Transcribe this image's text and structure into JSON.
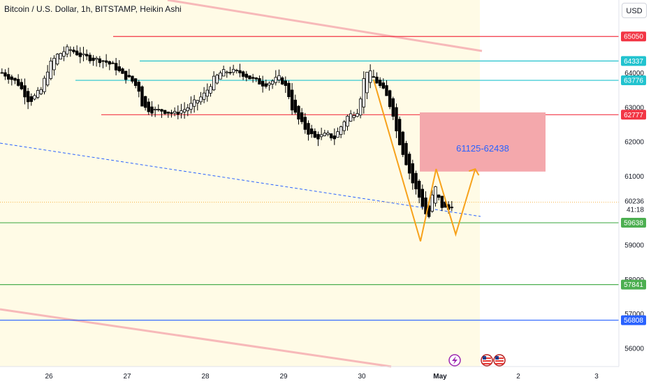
{
  "header": {
    "title": "Bitcoin / U.S. Dollar, 1h, BITSTAMP, Heikin Ashi",
    "currency": "USD"
  },
  "price_axis": {
    "ticks": [
      "64000",
      "63000",
      "62000",
      "61000",
      "59000",
      "58000",
      "57000",
      "56000"
    ],
    "current_price": "60236",
    "countdown": "41:18"
  },
  "time_axis": {
    "labels": [
      "26",
      "27",
      "28",
      "29",
      "30",
      "May",
      "2",
      "3"
    ]
  },
  "levels": [
    {
      "price": 65050,
      "label": "65050",
      "color": "#f23645"
    },
    {
      "price": 64337,
      "label": "64337",
      "color": "#22c3cf"
    },
    {
      "price": 63776,
      "label": "63776",
      "color": "#22c3cf"
    },
    {
      "price": 62777,
      "label": "62777",
      "color": "#f23645"
    },
    {
      "price": 59638,
      "label": "59638",
      "color": "#4caf50"
    },
    {
      "price": 57841,
      "label": "57841",
      "color": "#4caf50"
    },
    {
      "price": 56808,
      "label": "56808",
      "color": "#2962ff"
    }
  ],
  "target_zone": {
    "label": "61125-62438",
    "low": 61125,
    "high": 62438,
    "color": "#f4a8ac"
  },
  "icons": {
    "lightning": "lightning-icon",
    "flag": "us-flag-icon"
  },
  "colors": {
    "background_zone": "#fffbe6",
    "channel": "#f7b9b9",
    "dashed_trend": "#2962ff",
    "pattern": "#f7a21b"
  },
  "chart_data": {
    "type": "candlestick",
    "title": "Bitcoin / U.S. Dollar, 1h, BITSTAMP, Heikin Ashi",
    "ylim": [
      55500,
      66200
    ],
    "x_range_days": [
      25.4,
      32.6
    ],
    "close_path": [
      [
        25.4,
        64000
      ],
      [
        25.6,
        63700
      ],
      [
        25.75,
        63150
      ],
      [
        25.9,
        63500
      ],
      [
        26.0,
        64200
      ],
      [
        26.1,
        64500
      ],
      [
        26.25,
        64700
      ],
      [
        26.4,
        64500
      ],
      [
        26.55,
        64400
      ],
      [
        26.7,
        64350
      ],
      [
        26.85,
        64150
      ],
      [
        26.95,
        63900
      ],
      [
        27.05,
        63800
      ],
      [
        27.15,
        63500
      ],
      [
        27.2,
        63000
      ],
      [
        27.3,
        62900
      ],
      [
        27.45,
        62900
      ],
      [
        27.6,
        62800
      ],
      [
        27.75,
        62950
      ],
      [
        27.9,
        63200
      ],
      [
        28.0,
        63400
      ],
      [
        28.1,
        63800
      ],
      [
        28.2,
        64000
      ],
      [
        28.3,
        64050
      ],
      [
        28.45,
        64000
      ],
      [
        28.6,
        63800
      ],
      [
        28.75,
        63650
      ],
      [
        28.85,
        63750
      ],
      [
        28.95,
        63850
      ],
      [
        29.05,
        63500
      ],
      [
        29.1,
        63000
      ],
      [
        29.2,
        62600
      ],
      [
        29.3,
        62300
      ],
      [
        29.4,
        62100
      ],
      [
        29.55,
        62200
      ],
      [
        29.65,
        62100
      ],
      [
        29.8,
        62700
      ],
      [
        29.95,
        62900
      ],
      [
        30.0,
        63500
      ],
      [
        30.05,
        64100
      ],
      [
        30.1,
        64000
      ],
      [
        30.2,
        63700
      ],
      [
        30.3,
        63400
      ],
      [
        30.4,
        62800
      ],
      [
        30.45,
        62200
      ],
      [
        30.55,
        61500
      ],
      [
        30.65,
        60800
      ],
      [
        30.75,
        60300
      ],
      [
        30.85,
        59700
      ],
      [
        30.9,
        60400
      ],
      [
        30.95,
        60700
      ],
      [
        31.0,
        60150
      ],
      [
        31.1,
        60000
      ],
      [
        31.18,
        60236
      ]
    ],
    "annotations": {
      "horizontal_levels": [
        65050,
        64337,
        63776,
        62777,
        59638,
        57841,
        56808
      ],
      "target_zone": [
        61125,
        62438
      ],
      "projection_zigzag": [
        [
          30.15,
          63800
        ],
        [
          30.75,
          59100
        ],
        [
          30.95,
          61200
        ],
        [
          31.2,
          59300
        ],
        [
          31.45,
          61200
        ]
      ]
    }
  }
}
